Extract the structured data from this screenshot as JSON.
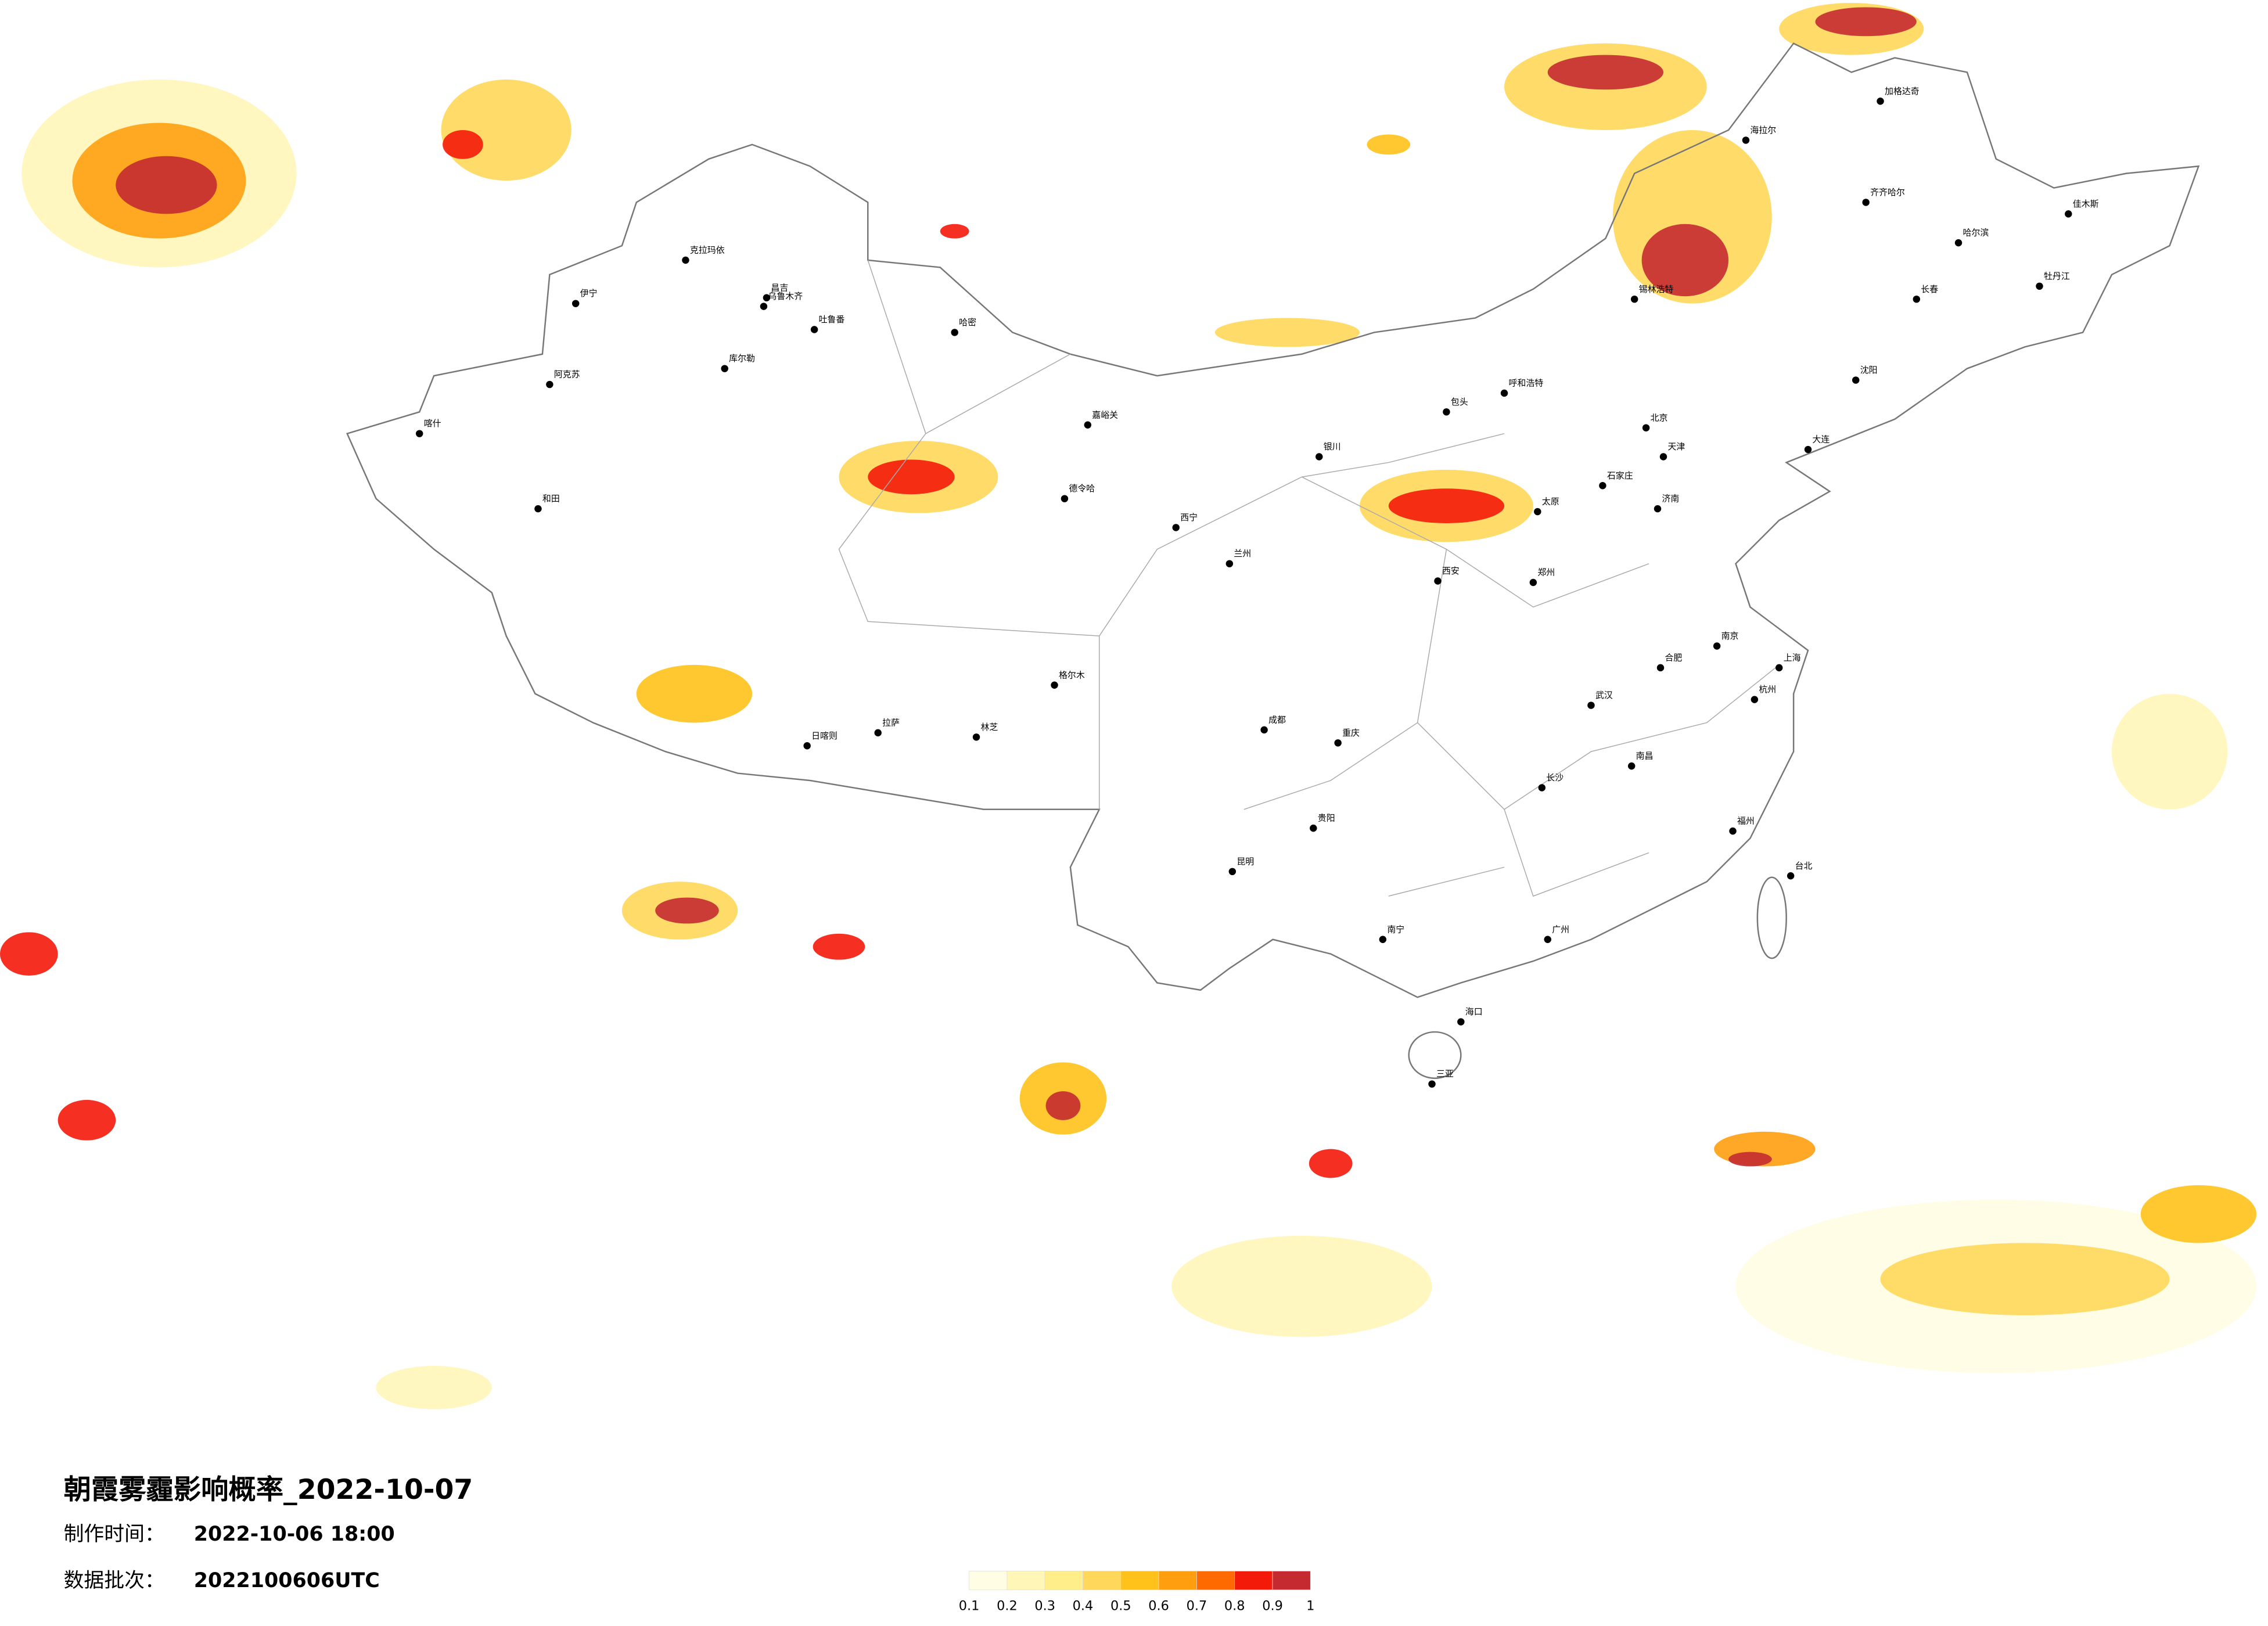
{
  "title": "朝霞雾霾影响概率_2022-10-07",
  "info": [
    {
      "label": "制作时间：",
      "value": "2022-10-06 18:00"
    },
    {
      "label": "数据批次：",
      "value": "2022100606UTC"
    }
  ],
  "legend": {
    "colors": [
      "#fffde3",
      "#fff6b8",
      "#ffee8a",
      "#ffd75a",
      "#ffc21a",
      "#ff9f0f",
      "#ff6a00",
      "#f41a0a",
      "#c42a30"
    ],
    "ticks": [
      0.1,
      0.2,
      0.3,
      0.4,
      0.5,
      0.6,
      0.7,
      0.8,
      0.9,
      1
    ]
  },
  "cities": [
    "克拉玛依",
    "昌吉",
    "乌鲁木齐",
    "吐鲁番",
    "哈密",
    "库尔勒",
    "阿克苏",
    "伊宁",
    "喀什",
    "和田",
    "德令哈",
    "嘉峪关",
    "格尔木",
    "拉萨",
    "日喀则",
    "林芝",
    "西宁",
    "兰州",
    "银川",
    "呼和浩特",
    "包头",
    "北京",
    "天津",
    "石家庄",
    "太原",
    "济南",
    "郑州",
    "西安",
    "成都",
    "重庆",
    "贵阳",
    "昆明",
    "南宁",
    "广州",
    "海口",
    "长沙",
    "武汉",
    "南昌",
    "合肥",
    "南京",
    "上海",
    "杭州",
    "福州",
    "台北",
    "哈尔滨",
    "长春",
    "沈阳",
    "大连",
    "齐齐哈尔",
    "海拉尔",
    "加格达奇",
    "佳木斯",
    "牡丹江",
    "锡林浩特",
    "三亚"
  ]
}
